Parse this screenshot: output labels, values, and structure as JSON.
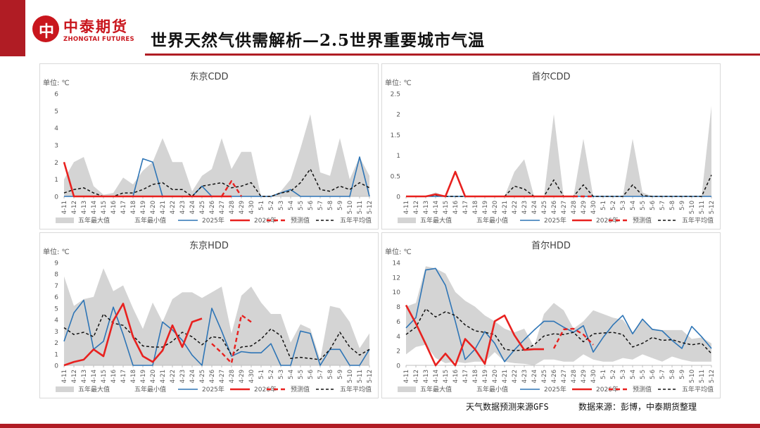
{
  "brand": {
    "cn": "中泰期货",
    "en": "ZHONGTAI FUTURES",
    "mark": "中",
    "color": "#c9161d"
  },
  "page_title": "世界天然气供需解析—2.5世界重要城市气温",
  "footer": {
    "left": "天气数据预测来源GFS",
    "right": "数据来源：彭博，中泰期货整理"
  },
  "legend_labels": [
    "五年最大值",
    "五年最小值",
    "2025年",
    "2026年",
    "预测值",
    "五年平均值"
  ],
  "colors": {
    "band": "#d4d4d4",
    "y2025": "#2e75b6",
    "y2026": "#e8211f",
    "forecast": "#e8211f",
    "avg": "#111111",
    "axis": "#bfbfbf",
    "text": "#595959"
  },
  "chart_data": [
    {
      "id": "tokyo-cdd",
      "type": "line",
      "title": "东京CDD",
      "unit_label": "单位: ℃",
      "ylim": [
        0,
        6
      ],
      "yticks": [
        0,
        1,
        2,
        3,
        4,
        5,
        6
      ],
      "categories": [
        "4-11",
        "4-12",
        "4-13",
        "4-14",
        "4-15",
        "4-16",
        "4-17",
        "4-18",
        "4-19",
        "4-20",
        "4-21",
        "4-22",
        "4-23",
        "4-24",
        "4-25",
        "4-26",
        "4-27",
        "4-28",
        "4-29",
        "4-30",
        "5-1",
        "5-2",
        "5-3",
        "5-4",
        "5-5",
        "5-6",
        "5-7",
        "5-8",
        "5-9",
        "5-10",
        "5-11",
        "5-12"
      ],
      "five_year_max": [
        1.0,
        2.0,
        2.3,
        0.6,
        0.1,
        0.2,
        1.1,
        0.7,
        1.5,
        2.0,
        3.4,
        2.0,
        2.0,
        0.3,
        1.2,
        1.6,
        3.4,
        1.6,
        2.6,
        2.6,
        0,
        0,
        0.3,
        1.0,
        2.8,
        4.8,
        1.4,
        1.2,
        3.4,
        1.0,
        2.3,
        1.2
      ],
      "five_year_min": [
        0,
        0,
        0,
        0,
        0,
        0,
        0,
        0,
        0,
        0,
        0,
        0,
        0,
        0,
        0,
        0,
        0,
        0,
        0,
        0,
        0,
        0,
        0,
        0,
        0,
        0,
        0,
        0,
        0,
        0,
        0,
        0
      ],
      "y2025": [
        0,
        0,
        0,
        0,
        0,
        0,
        0,
        0,
        2.2,
        2.0,
        0,
        0,
        0,
        0,
        0.6,
        0,
        0,
        0,
        0,
        0,
        0,
        0,
        0.2,
        0.4,
        0,
        0,
        0,
        0,
        0,
        0,
        2.3,
        0
      ],
      "y2026": [
        2.0,
        0,
        0,
        0,
        0,
        0,
        0,
        0,
        0,
        0,
        0,
        0,
        0,
        0,
        0,
        0,
        0,
        0,
        null,
        null,
        null,
        null,
        null,
        null,
        null,
        null,
        null,
        null,
        null,
        null,
        null,
        null
      ],
      "forecast": [
        null,
        null,
        null,
        null,
        null,
        null,
        null,
        null,
        null,
        null,
        null,
        null,
        null,
        null,
        null,
        null,
        0,
        0.9,
        0,
        null,
        null,
        null,
        null,
        null,
        null,
        null,
        null,
        null,
        null,
        null,
        null,
        null
      ],
      "five_year_avg": [
        0.2,
        0.4,
        0.5,
        0.2,
        0,
        0,
        0.2,
        0.2,
        0.4,
        0.7,
        0.8,
        0.4,
        0.4,
        0,
        0.6,
        0.7,
        0.8,
        0.5,
        0.6,
        0.8,
        0,
        0,
        0.2,
        0.3,
        0.8,
        1.6,
        0.4,
        0.3,
        0.6,
        0.4,
        0.8,
        0.5
      ]
    },
    {
      "id": "seoul-cdd",
      "type": "line",
      "title": "首尔CDD",
      "unit_label": "单位: ℃",
      "ylim": [
        0,
        2.5
      ],
      "yticks": [
        0,
        0.5,
        1,
        1.5,
        2,
        2.5
      ],
      "categories": [
        "4-11",
        "4-12",
        "4-13",
        "4-14",
        "4-15",
        "4-16",
        "4-17",
        "4-18",
        "4-19",
        "4-20",
        "4-21",
        "4-22",
        "4-23",
        "4-24",
        "4-25",
        "4-26",
        "4-27",
        "4-28",
        "4-29",
        "4-30",
        "5-1",
        "5-2",
        "5-3",
        "5-4",
        "5-5",
        "5-6",
        "5-7",
        "5-8",
        "5-9",
        "5-10",
        "5-11",
        "5-12"
      ],
      "five_year_max": [
        0,
        0,
        0,
        0.1,
        0,
        0,
        0,
        0,
        0,
        0,
        0,
        0.6,
        0.9,
        0,
        0,
        2.0,
        0,
        0,
        1.4,
        0,
        0,
        0,
        0,
        1.4,
        0.1,
        0,
        0,
        0,
        0,
        0,
        0,
        2.2
      ],
      "five_year_min": [
        0,
        0,
        0,
        0,
        0,
        0,
        0,
        0,
        0,
        0,
        0,
        0,
        0,
        0,
        0,
        0,
        0,
        0,
        0,
        0,
        0,
        0,
        0,
        0,
        0,
        0,
        0,
        0,
        0,
        0,
        0,
        0
      ],
      "y2025": [
        0,
        0,
        0,
        0,
        0,
        0,
        0,
        0,
        0,
        0,
        0,
        0,
        0,
        0,
        0,
        0,
        0,
        0,
        0,
        0,
        0,
        0,
        0,
        0,
        0,
        0,
        0,
        0,
        0,
        0,
        0,
        0
      ],
      "y2026": [
        0,
        0,
        0,
        0.05,
        0,
        0.6,
        0,
        0,
        0,
        0,
        0,
        0,
        0,
        0,
        0,
        0,
        0,
        0,
        null,
        null,
        null,
        null,
        null,
        null,
        null,
        null,
        null,
        null,
        null,
        null,
        null,
        null
      ],
      "forecast": [
        null,
        null,
        null,
        null,
        null,
        null,
        null,
        null,
        null,
        null,
        null,
        null,
        null,
        null,
        null,
        null,
        null,
        0,
        0,
        0,
        null,
        null,
        null,
        null,
        null,
        null,
        null,
        null,
        null,
        null,
        null,
        null
      ],
      "five_year_avg": [
        0,
        0,
        0,
        0.03,
        0,
        0,
        0,
        0,
        0,
        0,
        0,
        0.25,
        0.18,
        0,
        0,
        0.4,
        0,
        0,
        0.28,
        0,
        0,
        0,
        0,
        0.28,
        0.02,
        0,
        0,
        0,
        0,
        0,
        0,
        0.52
      ]
    },
    {
      "id": "tokyo-hdd",
      "type": "line",
      "title": "东京HDD",
      "unit_label": "单位: ℃",
      "ylim": [
        0,
        9
      ],
      "yticks": [
        0,
        1,
        2,
        3,
        4,
        5,
        6,
        7,
        8,
        9
      ],
      "categories": [
        "4-11",
        "4-12",
        "4-13",
        "4-14",
        "4-15",
        "4-16",
        "4-17",
        "4-18",
        "4-19",
        "4-20",
        "4-21",
        "4-22",
        "4-23",
        "4-24",
        "4-25",
        "4-26",
        "4-27",
        "4-28",
        "4-29",
        "4-30",
        "5-1",
        "5-2",
        "5-3",
        "5-4",
        "5-5",
        "5-6",
        "5-7",
        "5-8",
        "5-9",
        "5-10",
        "5-11",
        "5-12"
      ],
      "five_year_max": [
        7.8,
        5.2,
        5.8,
        6.0,
        8.5,
        6.5,
        7.0,
        5.0,
        3.2,
        5.5,
        3.8,
        5.8,
        6.4,
        6.4,
        5.9,
        6.4,
        6.9,
        2.8,
        6.1,
        6.9,
        5.5,
        4.5,
        4.5,
        2.0,
        3.6,
        3.2,
        0.5,
        5.2,
        5.0,
        3.8,
        1.5,
        2.8
      ],
      "five_year_min": [
        0,
        0,
        0,
        0,
        0,
        0,
        0,
        0,
        0,
        0,
        0,
        0,
        0,
        0,
        0,
        0,
        0,
        0,
        0,
        0,
        0,
        0,
        0,
        0,
        0,
        0,
        0,
        0,
        0,
        0,
        0,
        0
      ],
      "y2025": [
        2.1,
        4.6,
        5.7,
        1.4,
        2.1,
        5.1,
        2.7,
        0,
        0,
        0,
        3.8,
        3.1,
        2.2,
        0.9,
        0,
        5.0,
        3.0,
        0.8,
        1.2,
        1.1,
        1.1,
        1.9,
        0,
        0,
        3.0,
        2.8,
        0,
        1.4,
        1.4,
        0,
        0,
        1.4
      ],
      "y2026": [
        0,
        0.3,
        0.5,
        1.4,
        0.8,
        3.9,
        5.4,
        2.5,
        0.8,
        0.3,
        1.3,
        3.5,
        1.6,
        3.8,
        4.1,
        null,
        null,
        null,
        null,
        null,
        null,
        null,
        null,
        null,
        null,
        null,
        null,
        null,
        null,
        null,
        null,
        null
      ],
      "forecast": [
        null,
        null,
        null,
        null,
        null,
        null,
        null,
        null,
        null,
        null,
        null,
        null,
        null,
        null,
        null,
        1.9,
        1.1,
        0.2,
        4.4,
        3.8,
        null,
        null,
        null,
        null,
        null,
        null,
        null,
        null,
        null,
        null,
        null,
        null
      ],
      "five_year_avg": [
        3.3,
        2.7,
        2.9,
        2.5,
        4.5,
        3.7,
        3.5,
        2.6,
        1.7,
        1.6,
        1.6,
        2.1,
        2.9,
        2.5,
        1.8,
        2.5,
        2.4,
        0.9,
        1.6,
        1.7,
        2.3,
        3.2,
        2.6,
        0.6,
        0.7,
        0.6,
        0.5,
        1.4,
        2.9,
        1.6,
        0.9,
        1.4
      ]
    },
    {
      "id": "seoul-hdd",
      "type": "line",
      "title": "首尔HDD",
      "unit_label": "单位: ℃",
      "ylim": [
        0,
        14
      ],
      "yticks": [
        0,
        2,
        4,
        6,
        8,
        10,
        12,
        14
      ],
      "categories": [
        "4-11",
        "4-12",
        "4-13",
        "4-14",
        "4-15",
        "4-16",
        "4-17",
        "4-18",
        "4-19",
        "4-20",
        "4-21",
        "4-22",
        "4-23",
        "4-24",
        "4-25",
        "4-26",
        "4-27",
        "4-28",
        "4-29",
        "4-30",
        "5-1",
        "5-2",
        "5-3",
        "5-4",
        "5-5",
        "5-6",
        "5-7",
        "5-8",
        "5-9",
        "5-10",
        "5-11",
        "5-12"
      ],
      "five_year_max": [
        8.0,
        8.5,
        13.5,
        13.2,
        12.5,
        10.0,
        8.8,
        8.0,
        6.8,
        6.0,
        5.0,
        4.5,
        5.0,
        2.5,
        7.0,
        8.5,
        7.5,
        5.0,
        6.0,
        7.5,
        7.0,
        6.5,
        6.2,
        4.5,
        6.3,
        5.0,
        4.8,
        4.8,
        4.8,
        3.6,
        3.8,
        3.0
      ],
      "five_year_min": [
        1.5,
        2.5,
        2.8,
        1.0,
        0.3,
        0.5,
        0.3,
        0.5,
        0.5,
        1.8,
        0.5,
        0.3,
        0.2,
        0,
        0.8,
        0.8,
        0.5,
        0.5,
        1.5,
        0.8,
        0.5,
        0.5,
        1.0,
        0.8,
        1.5,
        1.0,
        0.5,
        1.2,
        0.8,
        0.5,
        0.5,
        0.5
      ],
      "y2025": [
        5.1,
        6.5,
        13.0,
        13.2,
        10.9,
        6.0,
        0.8,
        2.2,
        4.6,
        3.0,
        0.5,
        2.1,
        3.5,
        4.8,
        6.0,
        6.0,
        5.2,
        4.5,
        5.4,
        1.8,
        3.8,
        5.5,
        6.8,
        4.3,
        6.3,
        4.9,
        4.7,
        3.4,
        2.3,
        5.3,
        3.9,
        2.3
      ],
      "y2026": [
        8.2,
        5.7,
        2.9,
        0,
        1.6,
        0,
        3.6,
        2.2,
        0.2,
        6.0,
        6.8,
        4.1,
        2.1,
        2.2,
        2.2,
        null,
        null,
        null,
        null,
        null,
        null,
        null,
        null,
        null,
        null,
        null,
        null,
        null,
        null,
        null,
        null,
        null
      ],
      "forecast": [
        null,
        null,
        null,
        null,
        null,
        null,
        null,
        null,
        null,
        null,
        null,
        null,
        null,
        null,
        null,
        2.3,
        4.9,
        5.0,
        4.2,
        2.8,
        null,
        null,
        null,
        null,
        null,
        null,
        null,
        null,
        null,
        null,
        null,
        null
      ],
      "five_year_avg": [
        4.2,
        5.2,
        7.7,
        6.6,
        7.3,
        6.8,
        5.5,
        4.7,
        4.5,
        4.2,
        2.2,
        2.0,
        2.1,
        2.8,
        4.0,
        4.3,
        4.2,
        4.5,
        3.2,
        4.3,
        4.4,
        4.5,
        4.2,
        2.5,
        3.0,
        3.8,
        3.4,
        3.5,
        3.1,
        2.8,
        3.0,
        1.6
      ]
    }
  ]
}
